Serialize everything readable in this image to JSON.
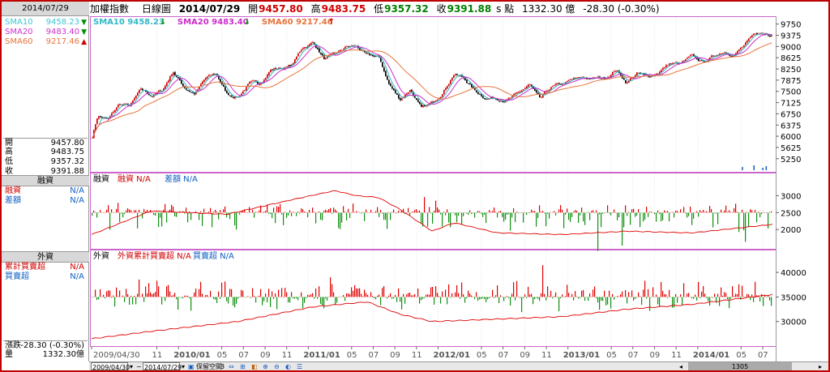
{
  "left": {
    "date": "2014/07/29",
    "sma": [
      {
        "label": "SMA10",
        "value": "9458.23",
        "color": "#3cc6d6",
        "arrow": "down"
      },
      {
        "label": "SMA20",
        "value": "9483.40",
        "color": "#cc33cc",
        "arrow": "down"
      },
      {
        "label": "SMA60",
        "value": "9217.46",
        "color": "#e8743b",
        "arrow": "up"
      }
    ],
    "ohlc": [
      {
        "label": "開",
        "value": "9457.80"
      },
      {
        "label": "高",
        "value": "9483.75"
      },
      {
        "label": "低",
        "value": "9357.32"
      },
      {
        "label": "收",
        "value": "9391.88"
      }
    ],
    "margin_title": "融資",
    "margin_rows": [
      {
        "label": "融資",
        "value": "N/A",
        "color": "#d00000"
      },
      {
        "label": "差額",
        "value": "N/A",
        "color": "#1060c0"
      }
    ],
    "foreign_title": "外資",
    "foreign_rows": [
      {
        "label": "累計買賣超",
        "value": "N/A",
        "color": "#d00000"
      },
      {
        "label": "買賣超",
        "value": "N/A",
        "color": "#1060c0"
      }
    ],
    "change_label": "漲跌",
    "change_value": "-28.30 (-0.30%)",
    "volume_label": "量",
    "volume_value": "1332.30億"
  },
  "header": {
    "name": "加權指數",
    "period": "日線圖",
    "date": "2014/07/29",
    "open_label": "開",
    "open": "9457.80",
    "high_label": "高",
    "high": "9483.75",
    "low_label": "低",
    "low": "9357.32",
    "close_label": "收",
    "close": "9391.88",
    "unit": "s 點",
    "amount": "1332.30 億",
    "change": "-28.30 (-0.30%)"
  },
  "price_legend": [
    {
      "label": "SMA10 9458.23",
      "color": "#30b8c8",
      "arrow": "↓",
      "arrow_color": "#009000"
    },
    {
      "label": "SMA20 9483.40",
      "color": "#cc2ccc",
      "arrow": "↓",
      "arrow_color": "#009000"
    },
    {
      "label": "SMA60 9217.46",
      "color": "#e8743b",
      "arrow": "↑",
      "arrow_color": "#d00000"
    }
  ],
  "margin_legend": [
    {
      "label": "融資",
      "color": "#000"
    },
    {
      "label": "融資 N/A",
      "color": "#d00000"
    },
    {
      "label": "差額 N/A",
      "color": "#1060c0"
    }
  ],
  "foreign_legend": [
    {
      "label": "外資",
      "color": "#000"
    },
    {
      "label": "外資累計買賣超 N/A",
      "color": "#d00000"
    },
    {
      "label": "買賣超 N/A",
      "color": "#1060c0"
    }
  ],
  "bottombar": {
    "from": "2009/04/30",
    "to": "2014/07/29",
    "tilde": "~",
    "save": "保留空間",
    "save_num": "3",
    "scroll_label": "1305"
  },
  "chart_data": [
    {
      "type": "candlestick",
      "title": "加權指數 日線圖",
      "ylim": [
        5000,
        9850
      ],
      "yticks": [
        9750,
        9375,
        9000,
        8625,
        8250,
        7875,
        7500,
        7125,
        6750,
        6375,
        6000,
        5625,
        5250
      ],
      "x_tick_labels": [
        "2009/04/30",
        "11",
        "2010/01",
        "05",
        "07",
        "09",
        "11",
        "2011/01",
        "05",
        "07",
        "09",
        "11",
        "2012/01",
        "05",
        "07",
        "09",
        "11",
        "2013/01",
        "05",
        "07",
        "09",
        "11",
        "2014/01",
        "05",
        "07"
      ],
      "close_path": [
        [
          "2009/04",
          5990
        ],
        [
          "2009/05",
          6700
        ],
        [
          "2009/06",
          6550
        ],
        [
          "2009/07",
          7050
        ],
        [
          "2009/08",
          7000
        ],
        [
          "2009/09",
          7510
        ],
        [
          "2009/10",
          7340
        ],
        [
          "2009/11",
          7520
        ],
        [
          "2009/12",
          8180
        ],
        [
          "2010/01",
          7650
        ],
        [
          "2010/02",
          7440
        ],
        [
          "2010/03",
          7920
        ],
        [
          "2010/04",
          8060
        ],
        [
          "2010/05",
          7390
        ],
        [
          "2010/06",
          7330
        ],
        [
          "2010/07",
          7760
        ],
        [
          "2010/08",
          7730
        ],
        [
          "2010/09",
          8240
        ],
        [
          "2010/10",
          8290
        ],
        [
          "2010/11",
          8370
        ],
        [
          "2010/12",
          8970
        ],
        [
          "2011/01",
          9140
        ],
        [
          "2011/02",
          8600
        ],
        [
          "2011/03",
          8680
        ],
        [
          "2011/04",
          8950
        ],
        [
          "2011/05",
          8990
        ],
        [
          "2011/06",
          8650
        ],
        [
          "2011/07",
          8640
        ],
        [
          "2011/08",
          7740
        ],
        [
          "2011/09",
          7220
        ],
        [
          "2011/10",
          7590
        ],
        [
          "2011/11",
          6900
        ],
        [
          "2011/12",
          7070
        ],
        [
          "2012/01",
          7520
        ],
        [
          "2012/02",
          8120
        ],
        [
          "2012/03",
          7930
        ],
        [
          "2012/04",
          7500
        ],
        [
          "2012/05",
          7300
        ],
        [
          "2012/06",
          7290
        ],
        [
          "2012/07",
          7270
        ],
        [
          "2012/08",
          7400
        ],
        [
          "2012/09",
          7710
        ],
        [
          "2012/10",
          7170
        ],
        [
          "2012/11",
          7580
        ],
        [
          "2012/12",
          7700
        ],
        [
          "2013/01",
          7850
        ],
        [
          "2013/02",
          7900
        ],
        [
          "2013/03",
          7920
        ],
        [
          "2013/04",
          7930
        ],
        [
          "2013/05",
          8250
        ],
        [
          "2013/06",
          7820
        ],
        [
          "2013/07",
          8110
        ],
        [
          "2013/08",
          7950
        ],
        [
          "2013/09",
          8170
        ],
        [
          "2013/10",
          8440
        ],
        [
          "2013/11",
          8400
        ],
        [
          "2013/12",
          8610
        ],
        [
          "2014/01",
          8460
        ],
        [
          "2014/02",
          8640
        ],
        [
          "2014/03",
          8850
        ],
        [
          "2014/04",
          8790
        ],
        [
          "2014/05",
          9070
        ],
        [
          "2014/06",
          9390
        ],
        [
          "2014/07",
          9392
        ]
      ],
      "series": [
        {
          "name": "SMA10"
        },
        {
          "name": "SMA20"
        },
        {
          "name": "SMA60"
        }
      ],
      "volume_note": "small volume bars near bottom-right"
    },
    {
      "type": "bar",
      "title": "融資",
      "ylim": [
        1500,
        3300
      ],
      "yticks": [
        3000,
        2500,
        2000
      ],
      "baseline": 2500,
      "line_path": [
        [
          "2009/04",
          1850
        ],
        [
          "2009/10",
          2550
        ],
        [
          "2010/05",
          2450
        ],
        [
          "2010/12",
          2950
        ],
        [
          "2011/03",
          3150
        ],
        [
          "2011/05",
          3000
        ],
        [
          "2011/07",
          2950
        ],
        [
          "2011/09",
          2600
        ],
        [
          "2011/12",
          1950
        ],
        [
          "2012/02",
          2200
        ],
        [
          "2012/06",
          1900
        ],
        [
          "2012/12",
          1850
        ],
        [
          "2013/06",
          1950
        ],
        [
          "2013/12",
          1900
        ],
        [
          "2014/07",
          2150
        ]
      ]
    },
    {
      "type": "bar",
      "title": "外資",
      "ylim": [
        25500,
        42000
      ],
      "yticks": [
        40000,
        35000,
        30000
      ],
      "baseline": 35000,
      "line_path": [
        [
          "2009/04",
          26500
        ],
        [
          "2009/10",
          28000
        ],
        [
          "2010/06",
          30000
        ],
        [
          "2011/01",
          33000
        ],
        [
          "2011/06",
          34000
        ],
        [
          "2011/09",
          31500
        ],
        [
          "2011/12",
          30000
        ],
        [
          "2012/06",
          30500
        ],
        [
          "2012/12",
          31000
        ],
        [
          "2013/06",
          32500
        ],
        [
          "2013/12",
          33500
        ],
        [
          "2014/07",
          35500
        ]
      ]
    }
  ]
}
